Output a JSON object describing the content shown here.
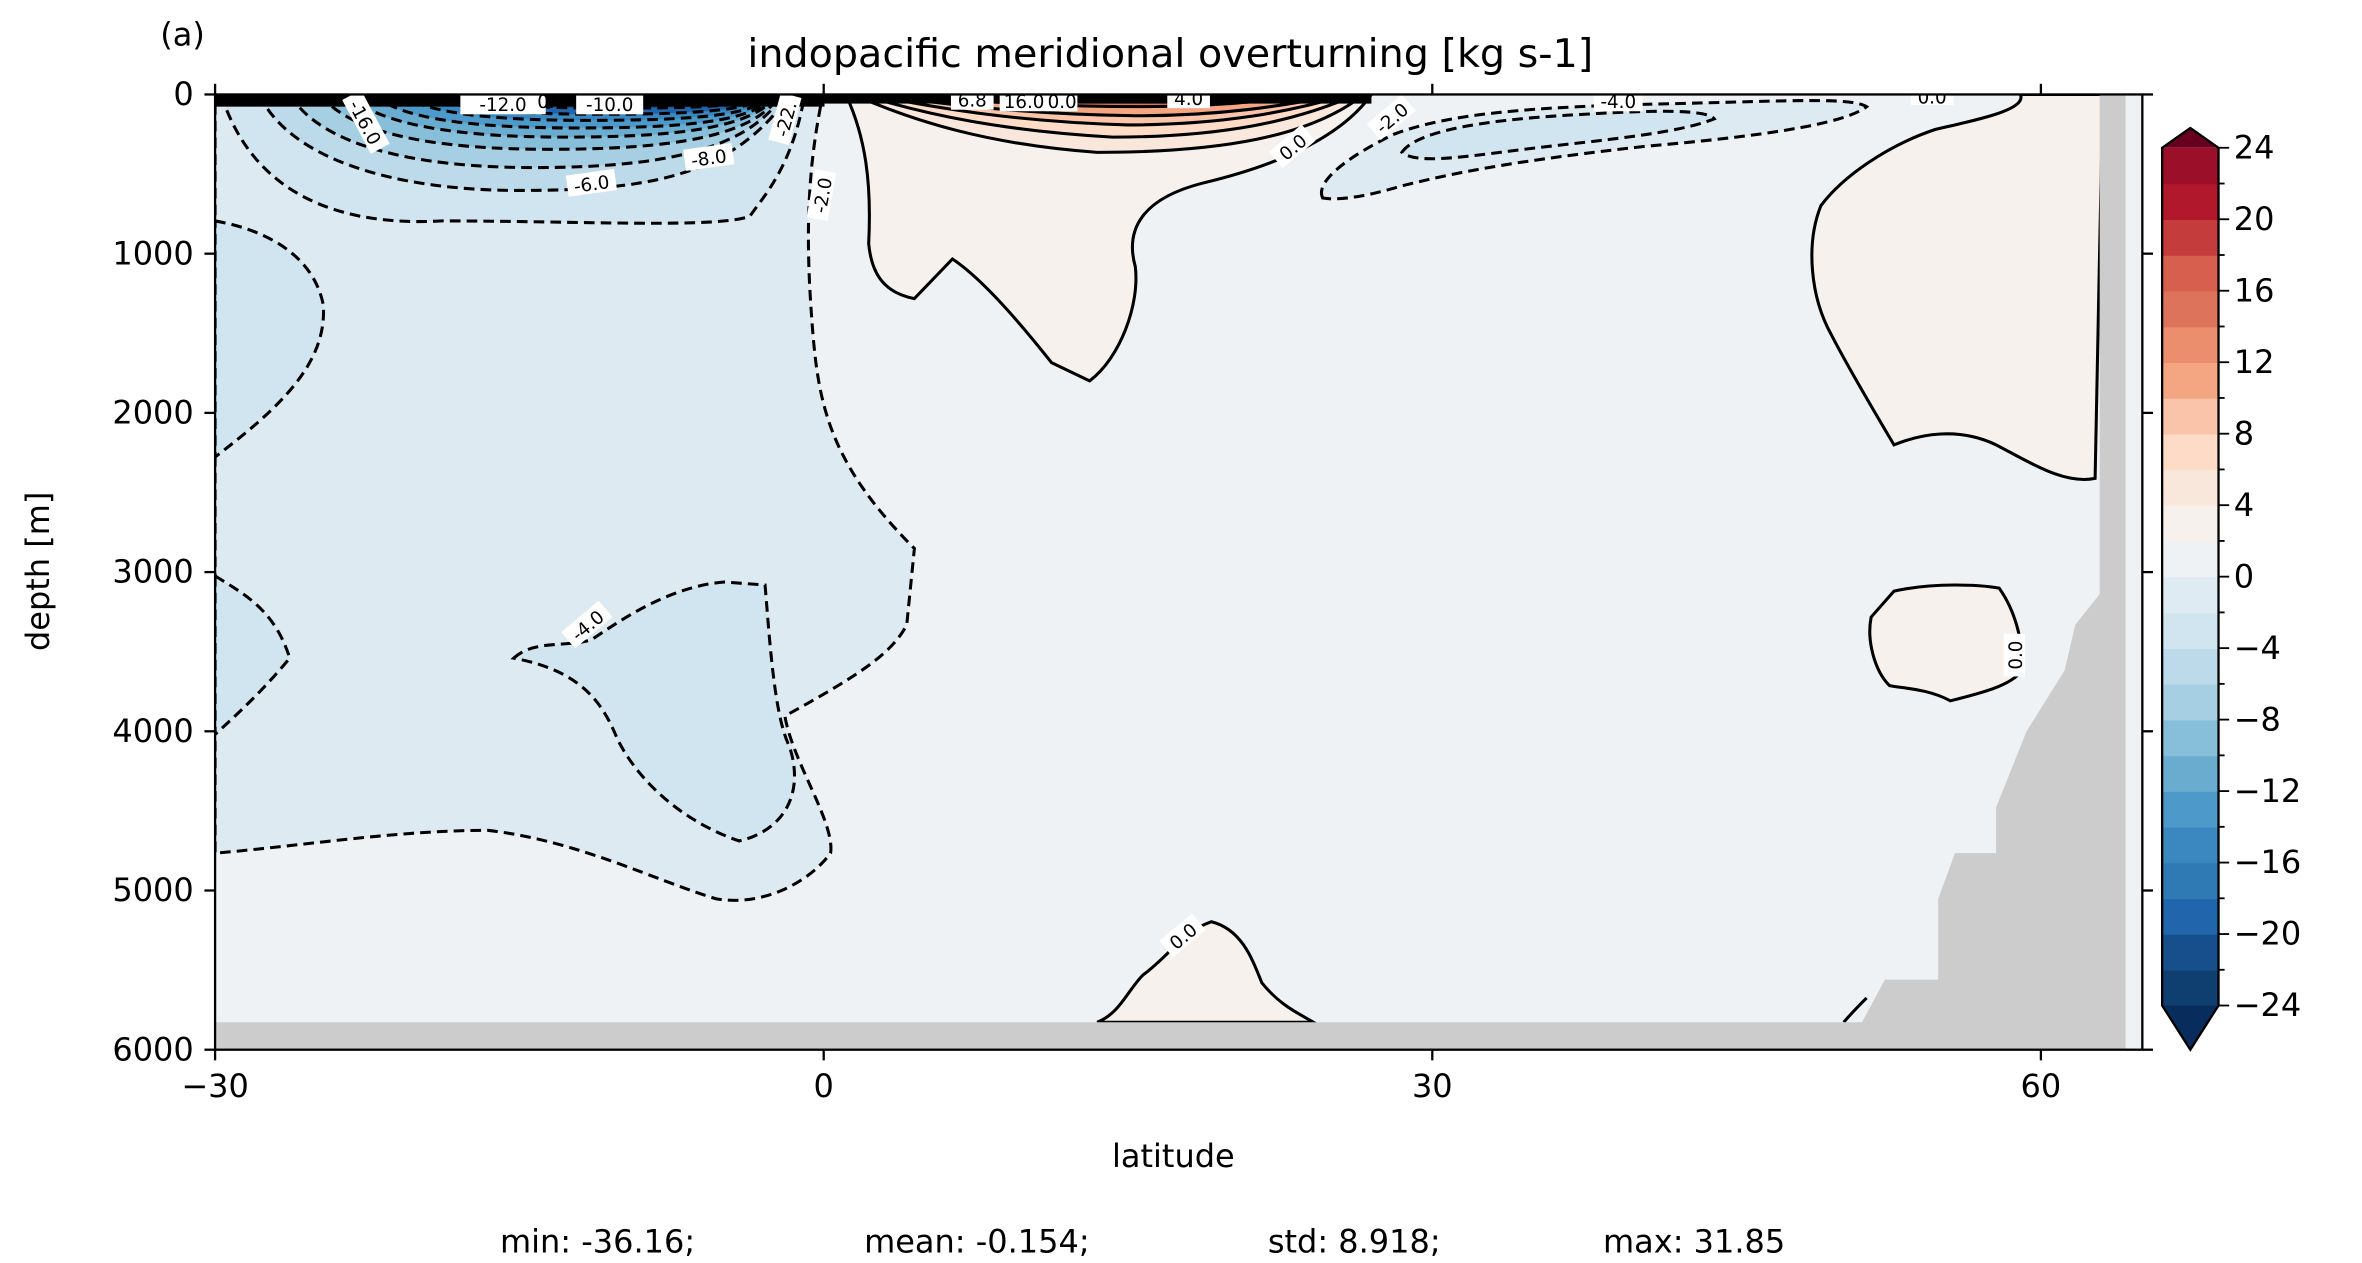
{
  "panel_label": "(a)",
  "chart_data": {
    "type": "contour",
    "title": "indopacific meridional overturning [kg s-1]",
    "xlabel": "latitude",
    "ylabel": "depth [m]",
    "xlim": [
      -30,
      65
    ],
    "ylim": [
      6000,
      0
    ],
    "xticks": [
      -30,
      0,
      30,
      60
    ],
    "xtick_labels": [
      "−30",
      "0",
      "30",
      "60"
    ],
    "yticks": [
      0,
      1000,
      2000,
      3000,
      4000,
      5000,
      6000
    ],
    "ytick_labels": [
      "0",
      "1000",
      "2000",
      "3000",
      "4000",
      "5000",
      "6000"
    ],
    "colorbar": {
      "levels": [
        -24,
        -22,
        -20,
        -18,
        -16,
        -14,
        -12,
        -10,
        -8,
        -6,
        -4,
        -2,
        0,
        2,
        4,
        6,
        8,
        10,
        12,
        14,
        16,
        18,
        20,
        22,
        24
      ],
      "colors": [
        "#0f3e70",
        "#174f8d",
        "#2166ac",
        "#2f79b5",
        "#3a88bf",
        "#4d99ca",
        "#6aacd0",
        "#87beda",
        "#a6cfe3",
        "#bcdaea",
        "#d1e5f0",
        "#dfebf3",
        "#eef2f5",
        "#f6f1ed",
        "#fae7dc",
        "#fddbc7",
        "#f9c4a9",
        "#f4a582",
        "#ea8e6e",
        "#de735c",
        "#d6604d",
        "#c43c3c",
        "#b2182b",
        "#9b0f28",
        "#870a24"
      ],
      "under_color": "#082d5c",
      "over_color": "#67001f",
      "tick_labels": [
        "24",
        "20",
        "16",
        "12",
        "8",
        "4",
        "0",
        "−4",
        "−8",
        "−12",
        "−16",
        "−20",
        "−24"
      ],
      "extend": "both"
    },
    "contour_labels": [
      "-12.0",
      "0.0",
      "-10.0",
      "-16.0",
      "-22.",
      "-8.0",
      "-6.0",
      "-2.0",
      "6.8",
      "16.0",
      "0.0",
      "4.0",
      "0.0",
      "-2.0",
      "-4.0",
      "0.0",
      "-4.0",
      "0.0",
      "0.0"
    ],
    "land_color": "#cccccc",
    "stats": {
      "min": "min: -36.16;",
      "mean": "mean: -0.154;",
      "std": "std: 8.918;",
      "max": "max: 31.85"
    }
  }
}
